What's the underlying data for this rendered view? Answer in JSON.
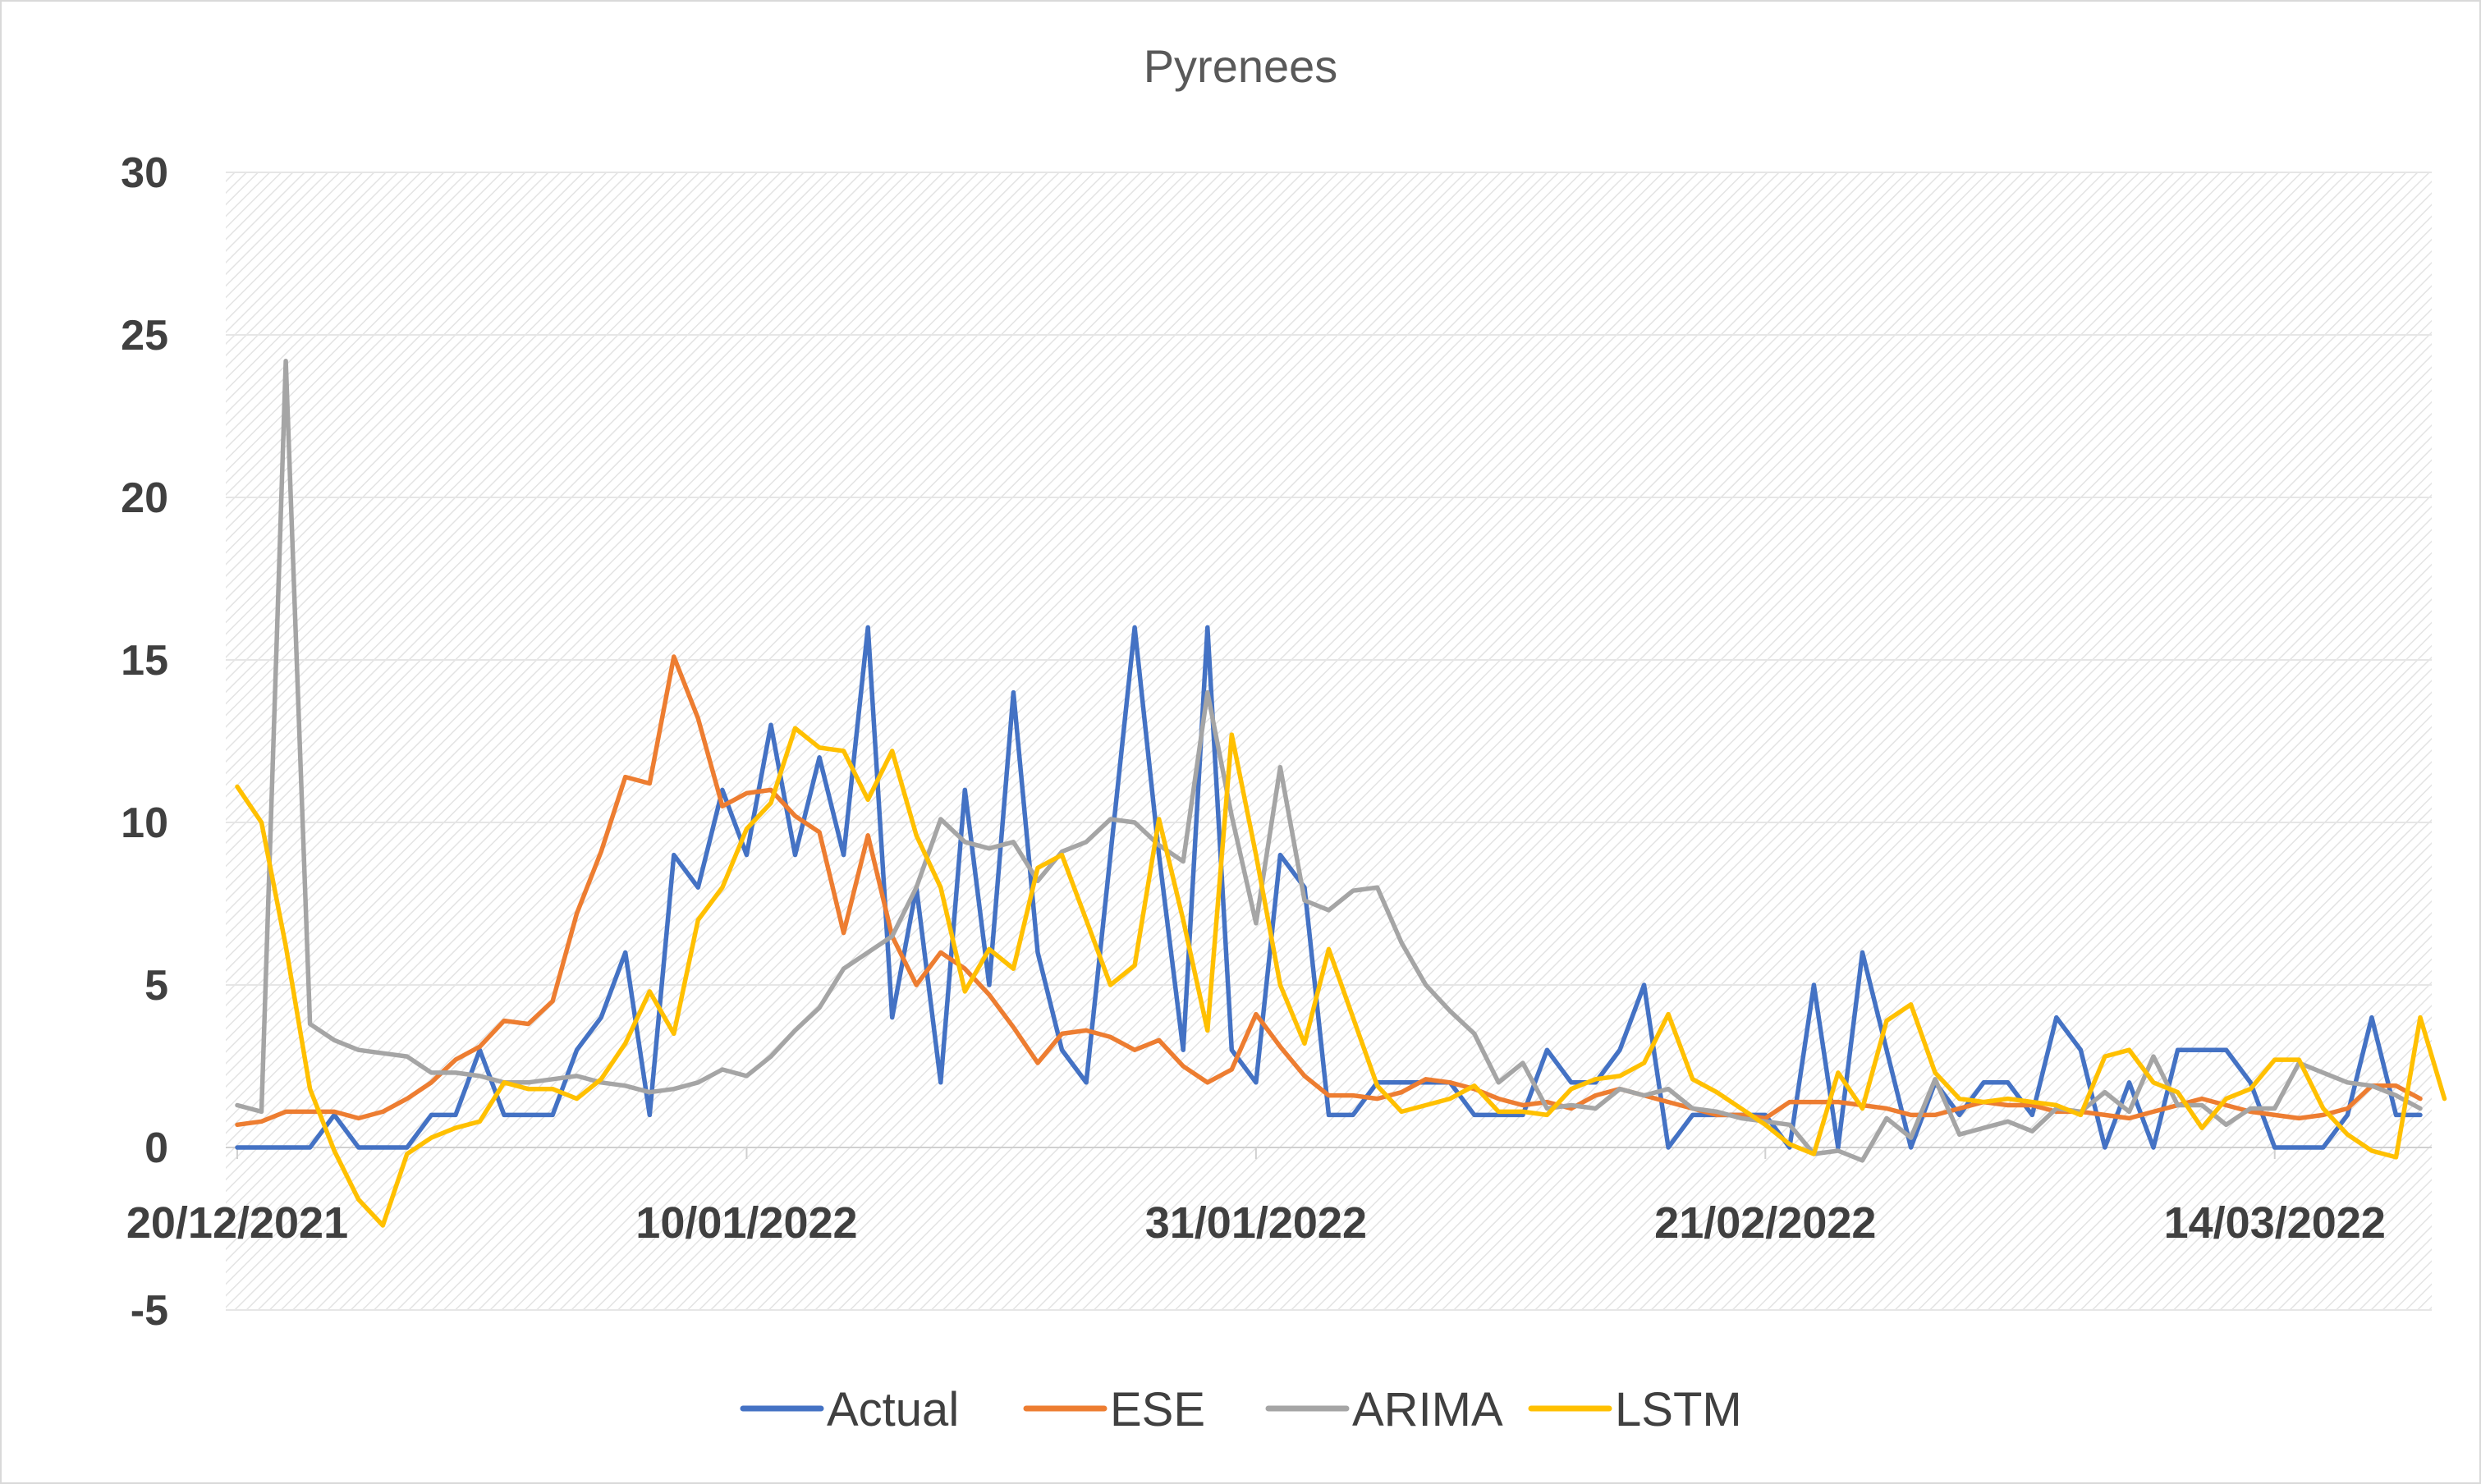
{
  "chart_data": {
    "type": "line",
    "title": "Pyrenees",
    "xlabel": "",
    "ylabel": "",
    "x_tick_labels": [
      "20/12/2021",
      "10/01/2022",
      "31/01/2022",
      "21/02/2022",
      "14/03/2022"
    ],
    "x_tick_indices": [
      0,
      21,
      42,
      63,
      84
    ],
    "y_ticks": [
      -5,
      0,
      5,
      10,
      15,
      20,
      25,
      30
    ],
    "ylim": [
      -5,
      30
    ],
    "grid": true,
    "legend_position": "bottom",
    "series": [
      {
        "name": "Actual",
        "color": "#4472C4",
        "values": [
          0,
          0,
          0,
          0,
          1,
          0,
          0,
          0,
          1,
          1,
          3,
          1,
          1,
          1,
          3,
          4,
          6,
          1,
          9,
          8,
          11,
          9,
          13,
          9,
          12,
          9,
          16,
          4,
          8,
          2,
          11,
          5,
          14,
          6,
          3,
          2,
          9,
          16,
          9,
          3,
          16,
          3,
          2,
          9,
          8,
          1,
          1,
          2,
          2,
          2,
          2,
          1,
          1,
          1,
          3,
          2,
          2,
          3,
          5,
          0,
          1,
          1,
          1,
          1,
          0,
          5,
          0,
          6,
          3,
          0,
          2,
          1,
          2,
          2,
          1,
          4,
          3,
          0,
          2,
          0,
          3,
          3,
          3,
          2,
          0,
          0,
          0,
          1,
          4,
          1,
          1
        ]
      },
      {
        "name": "ESE",
        "color": "#ED7D31",
        "values": [
          0.7,
          0.8,
          1.1,
          1.1,
          1.1,
          0.9,
          1.1,
          1.5,
          2,
          2.7,
          3.1,
          3.9,
          3.8,
          4.5,
          7.2,
          9.1,
          11.4,
          11.2,
          15.1,
          13.2,
          10.5,
          10.9,
          11,
          10.2,
          9.7,
          6.6,
          9.6,
          6.5,
          5,
          6,
          5.5,
          4.7,
          3.7,
          2.6,
          3.5,
          3.6,
          3.4,
          3,
          3.3,
          2.5,
          2,
          2.4,
          4.1,
          3.1,
          2.2,
          1.6,
          1.6,
          1.5,
          1.7,
          2.1,
          2,
          1.8,
          1.5,
          1.3,
          1.4,
          1.2,
          1.6,
          1.8,
          1.6,
          1.4,
          1.2,
          1,
          1,
          0.9,
          1.4,
          1.4,
          1.4,
          1.3,
          1.2,
          1,
          1,
          1.2,
          1.4,
          1.3,
          1.3,
          1.1,
          1.1,
          1,
          0.9,
          1.1,
          1.3,
          1.5,
          1.3,
          1.1,
          1,
          0.9,
          1,
          1.2,
          1.9,
          1.9,
          1.5
        ]
      },
      {
        "name": "ARIMA",
        "color": "#A5A5A5",
        "values": [
          1.3,
          1.1,
          24.2,
          3.8,
          3.3,
          3,
          2.9,
          2.8,
          2.3,
          2.3,
          2.2,
          2,
          2,
          2.1,
          2.2,
          2,
          1.9,
          1.7,
          1.8,
          2,
          2.4,
          2.2,
          2.8,
          3.6,
          4.3,
          5.5,
          6,
          6.5,
          8,
          10.1,
          9.4,
          9.2,
          9.4,
          8.2,
          9.1,
          9.4,
          10.1,
          10,
          9.3,
          8.8,
          14,
          10.2,
          6.9,
          11.7,
          7.6,
          7.3,
          7.9,
          8,
          6.3,
          5,
          4.2,
          3.5,
          2,
          2.6,
          1.2,
          1.3,
          1.2,
          1.8,
          1.6,
          1.8,
          1.2,
          1.1,
          0.9,
          0.8,
          0.7,
          -0.2,
          -0.1,
          -0.4,
          0.9,
          0.3,
          2.1,
          0.4,
          0.6,
          0.8,
          0.5,
          1.2,
          1.1,
          1.7,
          1.1,
          2.8,
          1.3,
          1.3,
          0.7,
          1.2,
          1.2,
          2.6,
          2.3,
          2,
          1.9,
          1.6,
          1.2
        ]
      },
      {
        "name": "LSTM",
        "color": "#FFC000",
        "values": [
          11.1,
          10,
          6.2,
          1.8,
          -0.1,
          -1.6,
          -2.4,
          -0.2,
          0.3,
          0.6,
          0.8,
          2,
          1.8,
          1.8,
          1.5,
          2.1,
          3.2,
          4.8,
          3.5,
          7,
          8,
          9.8,
          10.6,
          12.9,
          12.3,
          12.2,
          10.7,
          12.2,
          9.6,
          8,
          4.8,
          6.1,
          5.5,
          8.6,
          9,
          7,
          5,
          5.6,
          10.1,
          7,
          3.6,
          12.7,
          9,
          5,
          3.2,
          6.1,
          4,
          1.9,
          1.1,
          1.3,
          1.5,
          1.9,
          1.1,
          1.1,
          1,
          1.8,
          2.1,
          2.2,
          2.6,
          4.1,
          2.1,
          1.7,
          1.2,
          0.7,
          0.1,
          -0.2,
          2.3,
          1.2,
          3.9,
          4.4,
          2.3,
          1.5,
          1.4,
          1.5,
          1.4,
          1.3,
          1,
          2.8,
          3,
          2,
          1.7,
          0.6,
          1.5,
          1.8,
          2.7,
          2.7,
          1.2,
          0.4,
          -0.1,
          -0.3,
          4,
          1.5
        ]
      }
    ]
  }
}
